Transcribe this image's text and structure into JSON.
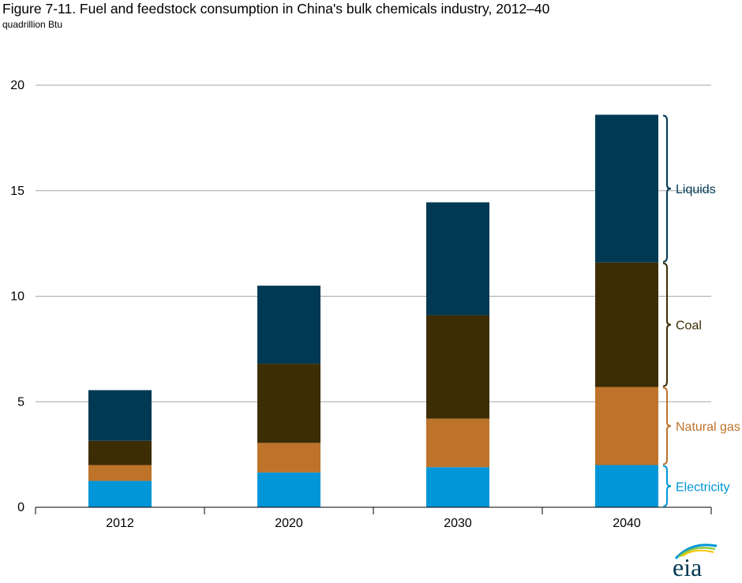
{
  "figure": {
    "title": "Figure 7-11. Fuel and feedstock consumption in China's bulk chemicals industry, 2012–40",
    "units": "quadrillion Btu"
  },
  "colors": {
    "electricity": "#0096d7",
    "natural_gas": "#bd732a",
    "coal": "#3c2d05",
    "liquids": "#003953",
    "gridline": "#a6a6a6",
    "axis": "#000000"
  },
  "chart_data": {
    "type": "bar",
    "stacked": true,
    "title": "Figure 7-11. Fuel and feedstock consumption in China's bulk chemicals industry, 2012–40",
    "ylabel": "quadrillion Btu",
    "xlabel": "",
    "categories": [
      "2012",
      "2020",
      "2030",
      "2040"
    ],
    "ylim": [
      0,
      20
    ],
    "yticks": [
      0,
      5,
      10,
      15,
      20
    ],
    "grid": true,
    "legend": "labels with braces to the right of the 2040 bar",
    "series": [
      {
        "name": "Electricity",
        "key": "electricity",
        "values": [
          1.25,
          1.65,
          1.9,
          2.0
        ]
      },
      {
        "name": "Natural gas",
        "key": "natural_gas",
        "values": [
          0.75,
          1.4,
          2.3,
          3.7
        ]
      },
      {
        "name": "Coal",
        "key": "coal",
        "values": [
          1.15,
          3.75,
          4.9,
          5.9
        ]
      },
      {
        "name": "Liquids",
        "key": "liquids",
        "values": [
          2.4,
          3.7,
          5.35,
          7.0
        ]
      }
    ]
  },
  "logo": {
    "text": "eia"
  }
}
